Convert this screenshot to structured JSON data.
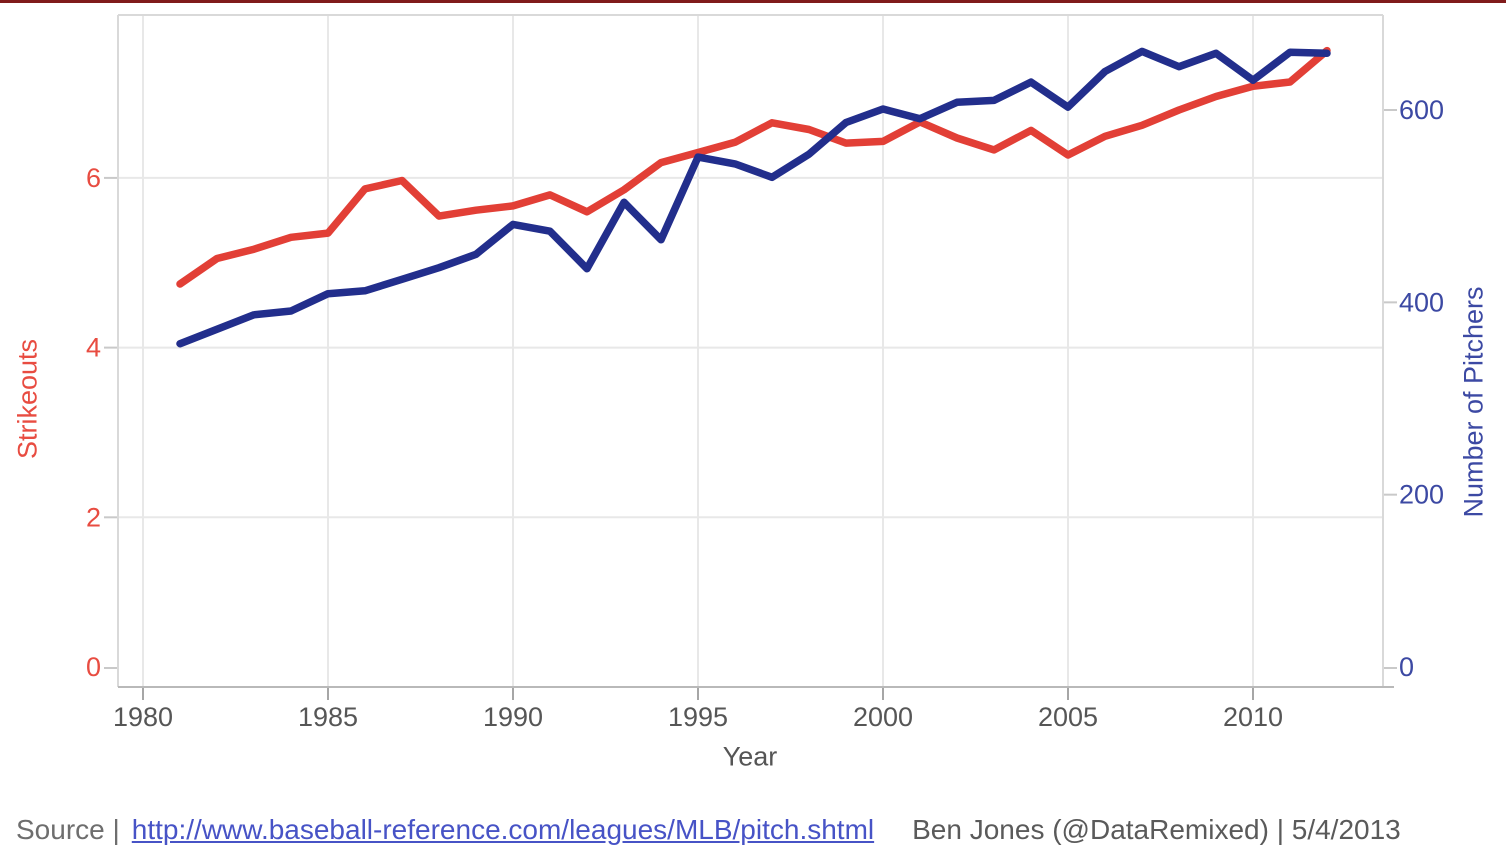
{
  "chart_data": {
    "type": "line",
    "title": "",
    "xlabel": "Year",
    "ylabel_left": "Strikeouts",
    "ylabel_right": "Number of Pitchers",
    "x": [
      1981,
      1982,
      1983,
      1984,
      1985,
      1986,
      1987,
      1988,
      1989,
      1990,
      1991,
      1992,
      1993,
      1994,
      1995,
      1996,
      1997,
      1998,
      1999,
      2000,
      2001,
      2002,
      2003,
      2004,
      2005,
      2006,
      2007,
      2008,
      2009,
      2010,
      2011,
      2012
    ],
    "series": [
      {
        "name": "Strikeouts",
        "axis": "left",
        "color": "#e23f36",
        "values": [
          4.75,
          5.05,
          5.16,
          5.3,
          5.35,
          5.87,
          5.97,
          5.55,
          5.62,
          5.67,
          5.8,
          5.6,
          5.86,
          6.18,
          6.3,
          6.42,
          6.65,
          6.57,
          6.41,
          6.43,
          6.66,
          6.47,
          6.33,
          6.56,
          6.27,
          6.49,
          6.62,
          6.8,
          6.96,
          7.08,
          7.13,
          7.5
        ]
      },
      {
        "name": "Number of Pitchers",
        "axis": "right",
        "color": "#222e8c",
        "values": [
          357,
          372,
          387,
          391,
          409,
          412,
          424,
          436,
          450,
          481,
          474,
          435,
          504,
          465,
          551,
          544,
          530,
          554,
          587,
          601,
          591,
          608,
          610,
          629,
          603,
          640,
          661,
          645,
          659,
          631,
          660,
          659
        ]
      }
    ],
    "axes": {
      "x": {
        "ticks": [
          1980,
          1985,
          1990,
          1995,
          2000,
          2005,
          2010
        ],
        "label_color": "#565656"
      },
      "left": {
        "ticks": [
          0,
          2,
          4,
          6
        ],
        "range": [
          0,
          7.92
        ],
        "label_color": "#e84c41"
      },
      "right": {
        "ticks": [
          0,
          200,
          400,
          600
        ],
        "range": [
          0,
          698.8
        ],
        "label_color": "#3c49a3"
      }
    },
    "grid": true,
    "legend": "none",
    "colors": {
      "gridline": "#e8e8e8",
      "plot_border": "#d9d9d9",
      "x_axis_line": "#b9b9b9",
      "tick_mark": "#c9c9c9",
      "x_tick_mark": "#a6a6a6",
      "top_strip": "#801b1b"
    }
  },
  "footer": {
    "source_label": "Source |",
    "source_url": "http://www.baseball-reference.com/leagues/MLB/pitch.shtml",
    "credit": "Ben Jones (@DataRemixed) | 5/4/2013"
  }
}
